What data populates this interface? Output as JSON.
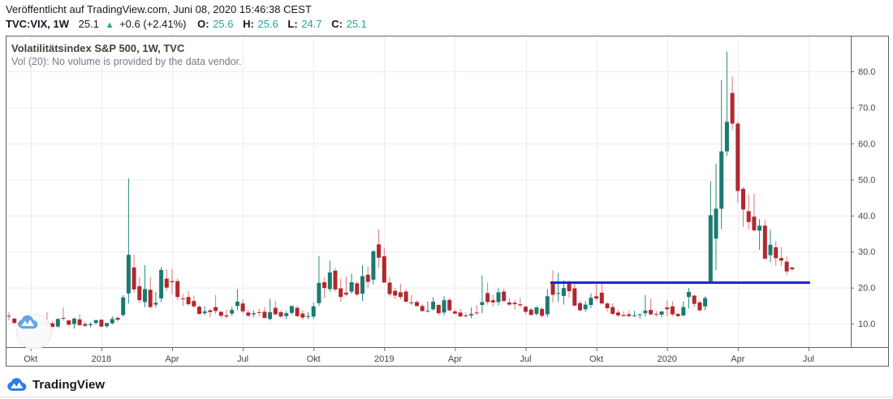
{
  "header": {
    "published_line": "Veröffentlicht auf TradingView.com, Juni 08, 2020 15:46:38 CEST",
    "symbol_interval": "TVC:VIX, 1W",
    "last_price": "25.1",
    "up_arrow": "▲",
    "change": "+0.6 (+2.41%)",
    "o_label": "O:",
    "o_value": "25.6",
    "h_label": "H:",
    "h_value": "25.6",
    "l_label": "L:",
    "l_value": "24.7",
    "c_label": "C:",
    "c_value": "25.1"
  },
  "legend": {
    "title": "Volatilitätsindex S&P 500, 1W, TVC",
    "status": "Vol (20): No volume is provided by the data vendor."
  },
  "footer": {
    "brand": "TradingView"
  },
  "icons": {
    "watermark": "tradingview-cloud-logo",
    "footer": "tradingview-cloud-logo"
  },
  "ui_colors": {
    "text_dark": "#131722",
    "text_gray": "#787b86",
    "value_teal": "#26a69a",
    "border": "#5f6168",
    "grid": "#ececef",
    "axis_text": "#42454c",
    "logo_blue": "#2e7ce9",
    "watermark_blue": "#64a7e8"
  },
  "chart_data": {
    "type": "candlestick",
    "title": "Volatilitätsindex S&P 500, 1W, TVC",
    "symbol": "TVC:VIX",
    "interval": "1W",
    "start_week": "2017-09-04",
    "grid": true,
    "y_axis": {
      "side": "right",
      "range": [
        3.5,
        89.9
      ],
      "ticks": [
        "10.0",
        "20.0",
        "30.0",
        "40.0",
        "50.0",
        "60.0",
        "70.0",
        "80.0"
      ]
    },
    "x_axis": {
      "labels": [
        {
          "text": "Okt",
          "week": 4
        },
        {
          "text": "2018",
          "week": 17
        },
        {
          "text": "Apr",
          "week": 30
        },
        {
          "text": "Jul",
          "week": 43
        },
        {
          "text": "Okt",
          "week": 56
        },
        {
          "text": "2019",
          "week": 69
        },
        {
          "text": "Apr",
          "week": 82
        },
        {
          "text": "Jul",
          "week": 95
        },
        {
          "text": "Okt",
          "week": 108
        },
        {
          "text": "2020",
          "week": 121
        },
        {
          "text": "Apr",
          "week": 134
        },
        {
          "text": "Jul",
          "week": 147
        }
      ]
    },
    "colors": {
      "up": "#1b7a70",
      "down": "#b1282f",
      "wick_up": "#26897e",
      "wick_down": "#e57373"
    },
    "trendline": {
      "type": "horizontal",
      "value": 21.4,
      "from_week": 100,
      "to_week": 147,
      "color": "#2126d9",
      "width": 3
    },
    "ohlc_weekly": [
      [
        12.2,
        13.2,
        10.9,
        12.1
      ],
      [
        11.4,
        11.6,
        9.9,
        10.2
      ],
      [
        10.2,
        10.6,
        9.4,
        9.6
      ],
      [
        10.2,
        11.2,
        9.4,
        9.5
      ],
      [
        9.5,
        9.9,
        9.1,
        9.6
      ],
      [
        9.9,
        10.1,
        9.3,
        9.6
      ],
      [
        9.8,
        11.3,
        9.6,
        10.0
      ],
      [
        10.3,
        13.2,
        9.7,
        9.8
      ],
      [
        10.1,
        10.8,
        9.0,
        9.1
      ],
      [
        9.2,
        11.5,
        8.9,
        11.3
      ],
      [
        11.6,
        14.5,
        10.8,
        11.4
      ],
      [
        10.9,
        11.1,
        9.5,
        9.7
      ],
      [
        9.9,
        11.7,
        8.6,
        11.4
      ],
      [
        11.2,
        12.6,
        9.4,
        9.6
      ],
      [
        9.9,
        10.6,
        9.1,
        9.4
      ],
      [
        9.6,
        10.3,
        9.0,
        9.9
      ],
      [
        10.2,
        11.0,
        9.7,
        11.0
      ],
      [
        11.1,
        11.2,
        8.9,
        9.2
      ],
      [
        9.3,
        10.1,
        8.9,
        10.2
      ],
      [
        10.1,
        12.1,
        9.8,
        11.3
      ],
      [
        11.6,
        12.0,
        10.6,
        11.1
      ],
      [
        12.4,
        17.9,
        12.0,
        17.3
      ],
      [
        18.4,
        50.3,
        15.6,
        29.1
      ],
      [
        25.6,
        29.2,
        18.6,
        19.5
      ],
      [
        20.4,
        23.0,
        15.7,
        16.5
      ],
      [
        16.0,
        26.2,
        14.6,
        19.6
      ],
      [
        19.4,
        23.0,
        14.1,
        14.6
      ],
      [
        15.3,
        18.8,
        14.5,
        15.8
      ],
      [
        17.0,
        25.7,
        15.9,
        24.9
      ],
      [
        22.5,
        25.0,
        19.1,
        20.0
      ],
      [
        21.8,
        25.2,
        18.1,
        21.5
      ],
      [
        21.8,
        22.5,
        16.4,
        17.4
      ],
      [
        17.0,
        18.2,
        14.9,
        16.9
      ],
      [
        17.4,
        19.0,
        15.0,
        15.4
      ],
      [
        16.3,
        17.8,
        14.4,
        14.8
      ],
      [
        14.7,
        15.1,
        12.5,
        12.7
      ],
      [
        12.9,
        14.8,
        12.4,
        13.4
      ],
      [
        13.7,
        14.1,
        11.7,
        13.2
      ],
      [
        14.6,
        18.0,
        12.7,
        13.5
      ],
      [
        13.3,
        13.4,
        11.6,
        12.2
      ],
      [
        12.3,
        13.9,
        11.4,
        12.0
      ],
      [
        12.8,
        14.7,
        12.1,
        13.8
      ],
      [
        14.9,
        19.6,
        13.7,
        16.1
      ],
      [
        15.6,
        16.7,
        12.9,
        13.4
      ],
      [
        13.1,
        13.8,
        11.8,
        12.2
      ],
      [
        12.6,
        13.6,
        11.8,
        12.9
      ],
      [
        13.2,
        14.2,
        11.9,
        13.0
      ],
      [
        13.3,
        14.6,
        11.4,
        11.6
      ],
      [
        11.3,
        16.9,
        10.9,
        13.2
      ],
      [
        14.4,
        16.3,
        12.3,
        12.6
      ],
      [
        13.2,
        13.8,
        11.6,
        12.0
      ],
      [
        12.1,
        13.5,
        11.2,
        12.9
      ],
      [
        13.0,
        15.0,
        12.5,
        14.9
      ],
      [
        14.4,
        14.9,
        11.9,
        12.1
      ],
      [
        12.8,
        13.7,
        11.1,
        11.7
      ],
      [
        12.0,
        13.2,
        11.3,
        12.1
      ],
      [
        12.0,
        15.9,
        11.3,
        14.8
      ],
      [
        15.7,
        28.8,
        14.9,
        21.3
      ],
      [
        21.5,
        22.9,
        17.1,
        19.9
      ],
      [
        19.6,
        27.5,
        18.9,
        24.2
      ],
      [
        24.7,
        25.4,
        18.9,
        19.5
      ],
      [
        19.8,
        22.5,
        16.1,
        17.4
      ],
      [
        18.6,
        23.0,
        17.6,
        18.1
      ],
      [
        18.9,
        23.8,
        18.3,
        21.5
      ],
      [
        21.2,
        21.7,
        17.6,
        18.1
      ],
      [
        18.3,
        26.2,
        16.3,
        23.2
      ],
      [
        23.6,
        25.9,
        19.9,
        21.6
      ],
      [
        22.2,
        30.4,
        20.9,
        30.1
      ],
      [
        32.0,
        36.2,
        25.5,
        28.3
      ],
      [
        28.7,
        31.1,
        21.4,
        21.4
      ],
      [
        21.4,
        22.9,
        17.5,
        18.2
      ],
      [
        19.1,
        19.9,
        16.8,
        17.8
      ],
      [
        18.7,
        21.1,
        16.7,
        17.4
      ],
      [
        18.9,
        19.6,
        16.0,
        16.1
      ],
      [
        15.9,
        17.9,
        15.2,
        15.7
      ],
      [
        16.0,
        16.4,
        14.7,
        14.9
      ],
      [
        14.9,
        15.5,
        13.3,
        13.5
      ],
      [
        13.6,
        16.2,
        13.1,
        13.6
      ],
      [
        14.0,
        17.4,
        13.6,
        16.1
      ],
      [
        15.2,
        15.4,
        12.4,
        12.9
      ],
      [
        13.1,
        17.6,
        12.3,
        16.5
      ],
      [
        16.6,
        17.1,
        13.4,
        13.7
      ],
      [
        13.4,
        14.0,
        12.7,
        12.8
      ],
      [
        13.1,
        14.1,
        11.8,
        12.0
      ],
      [
        12.3,
        13.1,
        11.8,
        12.1
      ],
      [
        12.3,
        14.5,
        11.5,
        12.7
      ],
      [
        13.1,
        15.1,
        12.4,
        12.9
      ],
      [
        15.2,
        23.4,
        12.9,
        16.0
      ],
      [
        18.5,
        21.4,
        15.3,
        16.0
      ],
      [
        16.5,
        18.1,
        14.8,
        15.9
      ],
      [
        16.0,
        19.8,
        15.1,
        18.7
      ],
      [
        18.9,
        19.7,
        15.9,
        16.3
      ],
      [
        15.9,
        17.1,
        15.0,
        15.3
      ],
      [
        15.8,
        16.6,
        13.9,
        15.4
      ],
      [
        15.4,
        17.2,
        14.5,
        15.1
      ],
      [
        14.7,
        15.1,
        12.6,
        13.3
      ],
      [
        13.9,
        14.4,
        12.3,
        12.4
      ],
      [
        12.7,
        14.8,
        12.2,
        14.5
      ],
      [
        14.1,
        14.6,
        11.7,
        12.2
      ],
      [
        12.6,
        19.6,
        11.8,
        17.6
      ],
      [
        21.1,
        24.8,
        15.8,
        18.0
      ],
      [
        18.5,
        24.1,
        16.0,
        18.5
      ],
      [
        17.7,
        22.1,
        15.3,
        19.9
      ],
      [
        21.6,
        22.0,
        17.2,
        19.0
      ],
      [
        19.8,
        21.2,
        14.9,
        15.0
      ],
      [
        15.7,
        16.3,
        13.4,
        13.7
      ],
      [
        14.0,
        16.3,
        13.3,
        15.3
      ],
      [
        15.2,
        18.4,
        14.3,
        17.2
      ],
      [
        17.6,
        21.5,
        16.3,
        17.0
      ],
      [
        18.6,
        21.0,
        15.3,
        15.6
      ],
      [
        15.6,
        16.0,
        13.3,
        14.3
      ],
      [
        14.6,
        15.6,
        12.5,
        12.7
      ],
      [
        13.1,
        13.8,
        11.8,
        12.3
      ],
      [
        12.4,
        13.4,
        12.0,
        12.1
      ],
      [
        12.6,
        13.6,
        11.8,
        12.1
      ],
      [
        12.3,
        13.5,
        11.9,
        12.3
      ],
      [
        12.4,
        12.8,
        11.4,
        12.6
      ],
      [
        12.9,
        18.0,
        12.0,
        13.6
      ],
      [
        13.8,
        16.9,
        12.2,
        12.6
      ],
      [
        12.7,
        13.5,
        11.9,
        12.5
      ],
      [
        12.5,
        13.0,
        11.7,
        13.4
      ],
      [
        14.5,
        16.4,
        12.1,
        14.0
      ],
      [
        14.8,
        16.2,
        12.1,
        12.6
      ],
      [
        12.7,
        13.0,
        11.8,
        12.1
      ],
      [
        12.3,
        16.2,
        12.0,
        14.6
      ],
      [
        17.4,
        19.9,
        14.2,
        18.8
      ],
      [
        17.8,
        17.9,
        14.6,
        15.5
      ],
      [
        15.9,
        16.4,
        13.4,
        13.7
      ],
      [
        14.8,
        17.6,
        13.7,
        17.1
      ],
      [
        21.6,
        49.5,
        21.0,
        40.1
      ],
      [
        33.6,
        54.4,
        24.9,
        41.9
      ],
      [
        41.9,
        77.6,
        36.2,
        57.8
      ],
      [
        57.8,
        85.5,
        56.6,
        66.0
      ],
      [
        74.0,
        78.6,
        63.7,
        65.5
      ],
      [
        65.5,
        66.0,
        43.5,
        46.8
      ],
      [
        47.4,
        48.0,
        36.8,
        41.7
      ],
      [
        41.2,
        45.8,
        36.1,
        38.2
      ],
      [
        39.7,
        46.0,
        35.5,
        35.9
      ],
      [
        35.8,
        39.0,
        30.5,
        37.2
      ],
      [
        37.2,
        38.8,
        27.9,
        28.0
      ],
      [
        29.0,
        36.1,
        27.0,
        31.9
      ],
      [
        31.2,
        32.9,
        26.1,
        28.2
      ],
      [
        28.2,
        31.2,
        26.0,
        27.5
      ],
      [
        27.2,
        28.6,
        23.5,
        24.5
      ],
      [
        25.6,
        25.6,
        24.7,
        25.1
      ]
    ]
  }
}
